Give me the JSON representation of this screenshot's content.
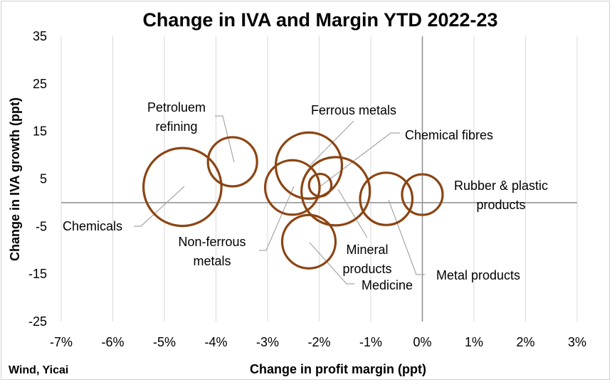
{
  "chart_data": {
    "type": "bubble",
    "title": "Change in IVA and Margin YTD 2022-23",
    "xlabel": "Change in profit margin (ppt)",
    "ylabel": "Change in IVA growth (ppt)",
    "source": "Wind, Yicai",
    "xlim": [
      -7,
      3
    ],
    "ylim": [
      -25,
      35
    ],
    "xticks": [
      "-7%",
      "-6%",
      "-5%",
      "-4%",
      "-3%",
      "-2%",
      "-1%",
      "0%",
      "1%",
      "2%",
      "3%"
    ],
    "yticks": [
      "35",
      "25",
      "15",
      "5",
      "-5",
      "-15",
      "-25"
    ],
    "grid": "vertical",
    "bubble_color": "#8B4513",
    "points": [
      {
        "name": "Chemicals",
        "label_lines": [
          "Chemicals"
        ],
        "x": -4.65,
        "y": 3.3,
        "size": 7.3
      },
      {
        "name": "Petroleum refining",
        "label_lines": [
          "Petroluem",
          "refining"
        ],
        "x": -3.68,
        "y": 8.6,
        "size": 4.6
      },
      {
        "name": "Ferrous metals",
        "label_lines": [
          "Ferrous metals"
        ],
        "x": -2.2,
        "y": 7.8,
        "size": 6.2
      },
      {
        "name": "Chemical fibres",
        "label_lines": [
          "Chemical fibres"
        ],
        "x": -1.98,
        "y": 3.7,
        "size": 2.1
      },
      {
        "name": "Non-ferrous metals",
        "label_lines": [
          "Non-ferrous",
          "metals"
        ],
        "x": -2.52,
        "y": 3.2,
        "size": 5.1
      },
      {
        "name": "Mineral products",
        "label_lines": [
          "Mineral",
          "products"
        ],
        "x": -1.68,
        "y": 2.4,
        "size": 6.4
      },
      {
        "name": "Medicine",
        "label_lines": [
          "Medicine"
        ],
        "x": -2.2,
        "y": -8.2,
        "size": 5.0
      },
      {
        "name": "Metal products",
        "label_lines": [
          "Metal products"
        ],
        "x": -0.7,
        "y": 0.8,
        "size": 4.9
      },
      {
        "name": "Rubber & plastic products",
        "label_lines": [
          "Rubber & plastic",
          "products"
        ],
        "x": 0.0,
        "y": 1.7,
        "size": 3.8
      }
    ]
  }
}
